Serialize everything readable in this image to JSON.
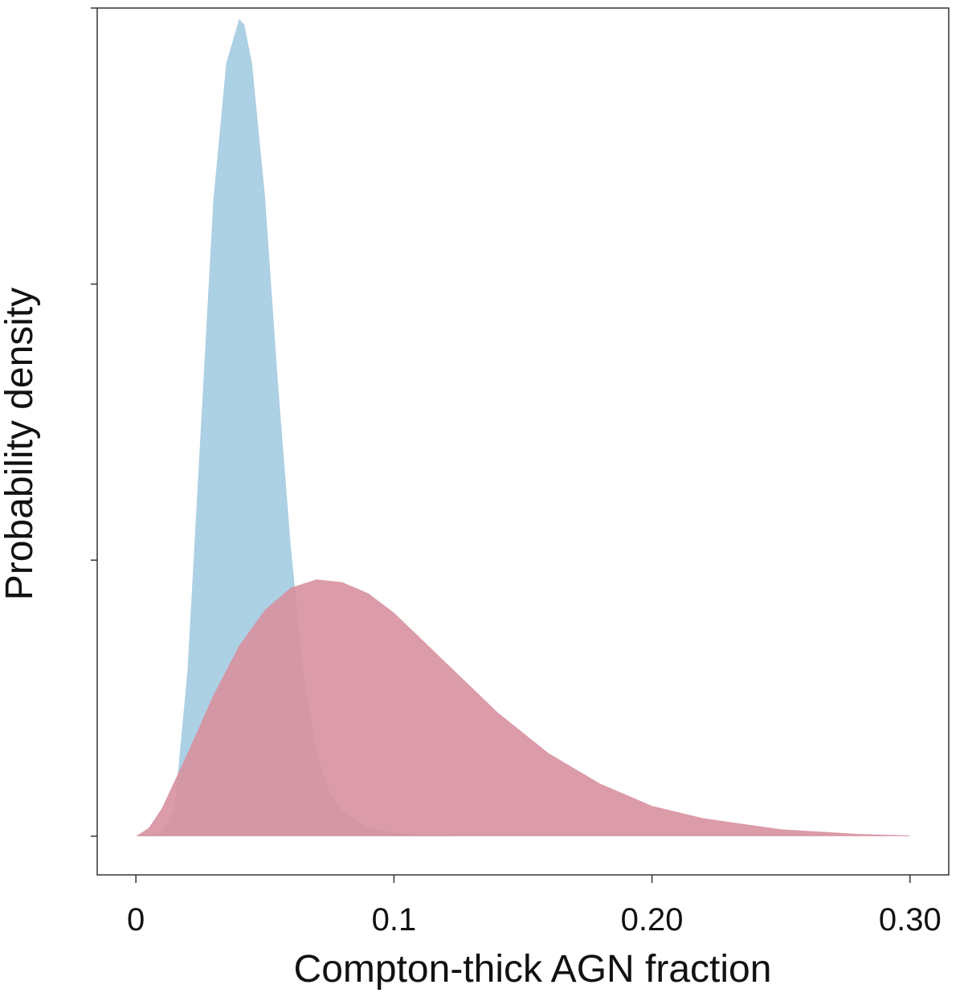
{
  "chart_data": {
    "type": "area",
    "title": "",
    "xlabel": "Compton-thick AGN fraction",
    "ylabel": "Probability density",
    "xlim": [
      -0.015,
      0.315
    ],
    "ylim": [
      -0.14,
      3.0
    ],
    "x_ticks": [
      {
        "value": 0,
        "label": "0"
      },
      {
        "value": 0.1,
        "label": "0.1"
      },
      {
        "value": 0.2,
        "label": "0.20"
      },
      {
        "value": 0.3,
        "label": "0.30"
      }
    ],
    "y_ticks": [
      0,
      1,
      2,
      3
    ],
    "y_tick_labels_shown": false,
    "grid": false,
    "legend": "none",
    "series": [
      {
        "color": "#a8cde3",
        "opacity": 0.95,
        "x": [
          0.0,
          0.01,
          0.015,
          0.02,
          0.025,
          0.03,
          0.035,
          0.04,
          0.042,
          0.045,
          0.05,
          0.055,
          0.06,
          0.065,
          0.07,
          0.075,
          0.08,
          0.09,
          0.1,
          0.11,
          0.12,
          0.14,
          0.3
        ],
        "values": [
          0.0,
          0.01,
          0.1,
          0.6,
          1.45,
          2.3,
          2.8,
          2.96,
          2.94,
          2.8,
          2.32,
          1.65,
          1.05,
          0.58,
          0.3,
          0.16,
          0.09,
          0.03,
          0.012,
          0.005,
          0.002,
          0.0,
          0.0
        ]
      },
      {
        "color": "#d7909f",
        "opacity": 0.9,
        "x": [
          0.0,
          0.005,
          0.01,
          0.02,
          0.03,
          0.04,
          0.05,
          0.06,
          0.07,
          0.08,
          0.09,
          0.1,
          0.12,
          0.14,
          0.16,
          0.18,
          0.2,
          0.22,
          0.25,
          0.28,
          0.3
        ],
        "values": [
          0.0,
          0.03,
          0.1,
          0.3,
          0.51,
          0.69,
          0.82,
          0.9,
          0.93,
          0.92,
          0.88,
          0.81,
          0.63,
          0.45,
          0.3,
          0.19,
          0.11,
          0.065,
          0.025,
          0.008,
          0.003
        ]
      }
    ]
  }
}
